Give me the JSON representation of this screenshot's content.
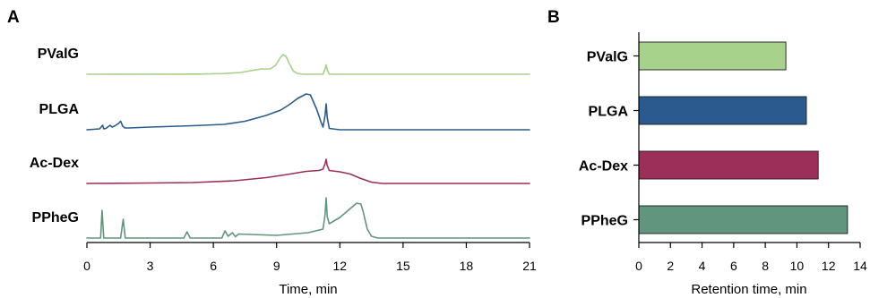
{
  "panels": {
    "a_letter": "A",
    "b_letter": "B"
  },
  "chart_data": [
    {
      "type": "line",
      "panel": "A",
      "xlabel": "Time, min",
      "ylabel": "",
      "xlim": [
        0,
        21
      ],
      "xticks": [
        "0",
        "3",
        "6",
        "9",
        "12",
        "15",
        "18",
        "21"
      ],
      "grid": false,
      "legend": "none; trace names printed beside each trace",
      "series": [
        {
          "name": "PValG",
          "color": "#a6d28b",
          "x": [
            0,
            5.4,
            6.5,
            7.3,
            7.9,
            8.3,
            8.7,
            8.95,
            9.15,
            9.3,
            9.45,
            9.6,
            9.8,
            10.0,
            10.3,
            10.6,
            11.2,
            11.3,
            11.35,
            11.4,
            11.5,
            11.7,
            21
          ],
          "y": [
            0.0,
            0.02,
            0.08,
            0.2,
            0.45,
            0.6,
            0.6,
            1.0,
            1.75,
            2.2,
            2.0,
            1.2,
            0.35,
            0.08,
            0.0,
            0.0,
            0.0,
            0.6,
            1.05,
            0.5,
            0.02,
            0.0,
            0.0
          ]
        },
        {
          "name": "PLGA",
          "color": "#2b5b8e",
          "x": [
            0,
            0.6,
            0.75,
            0.8,
            0.9,
            1.1,
            1.2,
            1.3,
            1.5,
            1.6,
            1.7,
            1.8,
            2.0,
            3.0,
            5.0,
            6.5,
            7.5,
            8.5,
            9.2,
            9.6,
            10.0,
            10.4,
            10.6,
            10.75,
            10.9,
            11.0,
            11.1,
            11.2,
            11.3,
            11.35,
            11.4,
            11.5,
            12.0,
            21
          ],
          "y": [
            0.0,
            0.1,
            0.5,
            0.1,
            0.15,
            0.5,
            0.3,
            0.4,
            0.7,
            0.95,
            0.4,
            0.2,
            0.2,
            0.3,
            0.45,
            0.6,
            0.95,
            1.6,
            2.2,
            2.8,
            3.5,
            4.0,
            3.9,
            3.1,
            2.3,
            1.6,
            0.9,
            0.3,
            1.6,
            2.9,
            1.4,
            0.15,
            0.0,
            0.0
          ]
        },
        {
          "name": "Ac-Dex",
          "color": "#9c2f5a",
          "x": [
            0,
            3.0,
            5.0,
            7.0,
            8.5,
            9.5,
            10.4,
            11.0,
            11.2,
            11.3,
            11.35,
            11.4,
            11.5,
            12.0,
            12.5,
            13.0,
            13.5,
            14.0,
            21
          ],
          "y": [
            0.0,
            0.05,
            0.1,
            0.3,
            0.65,
            1.0,
            1.35,
            1.45,
            1.6,
            2.2,
            2.7,
            2.0,
            1.45,
            1.3,
            1.05,
            0.55,
            0.15,
            0.0,
            0.0
          ]
        },
        {
          "name": "PPheG",
          "color": "#62957e",
          "x": [
            0,
            0.65,
            0.72,
            0.8,
            1.6,
            1.72,
            1.82,
            4.6,
            4.75,
            4.9,
            6.4,
            6.55,
            6.7,
            6.9,
            7.05,
            7.2,
            9.0,
            10.5,
            11.2,
            11.3,
            11.35,
            11.4,
            11.5,
            12.0,
            12.5,
            12.8,
            13.0,
            13.1,
            13.3,
            13.5,
            13.8,
            21
          ],
          "y": [
            0.0,
            0.0,
            3.1,
            0.0,
            0.0,
            2.1,
            0.0,
            0.0,
            0.7,
            0.0,
            0.0,
            0.8,
            0.2,
            0.6,
            0.15,
            0.45,
            0.3,
            0.6,
            1.0,
            2.6,
            4.5,
            2.4,
            1.6,
            2.3,
            3.3,
            3.9,
            3.8,
            3.0,
            1.0,
            0.2,
            0.0,
            0.0
          ]
        }
      ]
    },
    {
      "type": "bar",
      "panel": "B",
      "orientation": "horizontal",
      "categories": [
        "PValG",
        "PLGA",
        "Ac-Dex",
        "PPheG"
      ],
      "values": [
        9.3,
        10.6,
        11.35,
        13.2
      ],
      "colors": [
        "#a6d28b",
        "#2b5b8e",
        "#9c2f5a",
        "#62957e"
      ],
      "xlabel": "Retention time, min",
      "ylabel": "",
      "xlim": [
        0,
        14
      ],
      "xticks": [
        "0",
        "2",
        "4",
        "6",
        "8",
        "10",
        "12",
        "14"
      ],
      "grid": false
    }
  ]
}
